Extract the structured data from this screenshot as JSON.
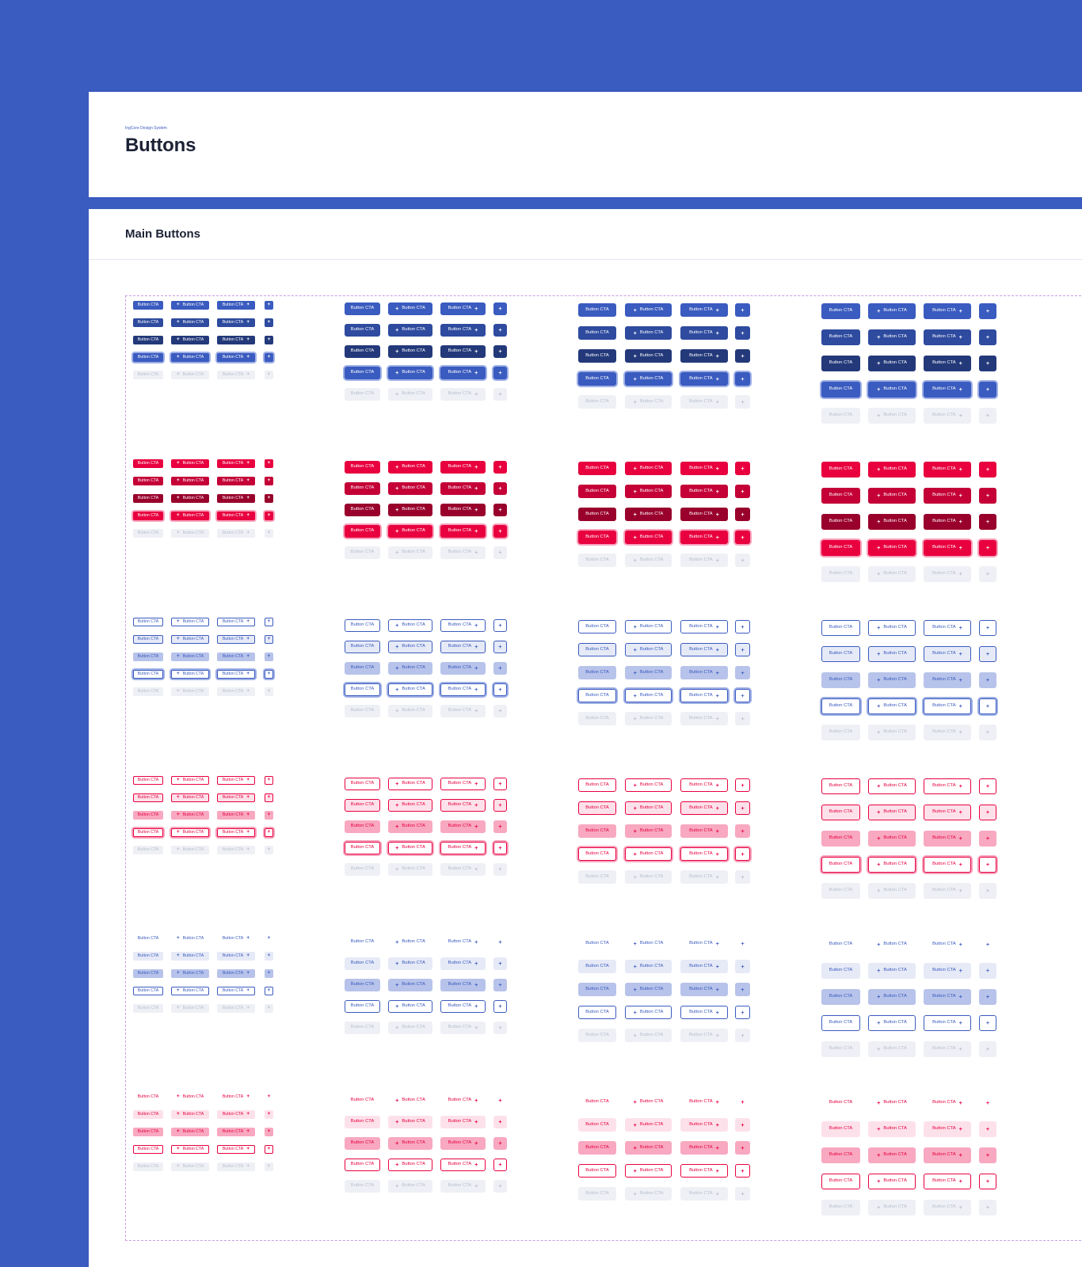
{
  "header": {
    "eyebrow": "IngCore Design System",
    "title": "Buttons"
  },
  "section": {
    "title": "Main Buttons"
  },
  "button": {
    "label": "Button CTA",
    "icon": "plus-icon",
    "icon_glyph": "+"
  },
  "variants": [
    "primary-blue-solid",
    "danger-red-solid",
    "blue-outline",
    "red-outline",
    "blue-ghost",
    "red-ghost"
  ],
  "states": [
    "default",
    "hover",
    "pressed",
    "focused",
    "disabled"
  ],
  "sizes": [
    "xs",
    "sm",
    "md",
    "lg"
  ],
  "button_types": [
    "label-only",
    "leading-icon",
    "trailing-icon",
    "icon-only"
  ],
  "colors": {
    "page_background": "#3a5bbf",
    "card_background": "#ffffff",
    "title_text": "#1c2235",
    "eyebrow_text": "#3a5bbf",
    "frame_border": "#c99ee6",
    "blue_default": "#3a5bbf",
    "blue_hover": "#2e4b9f",
    "blue_pressed": "#23397a",
    "red_default": "#e8003f",
    "red_hover": "#c40037",
    "red_pressed": "#99002b",
    "disabled_bg": "#eef0f5",
    "disabled_text": "#b9bfcd"
  }
}
